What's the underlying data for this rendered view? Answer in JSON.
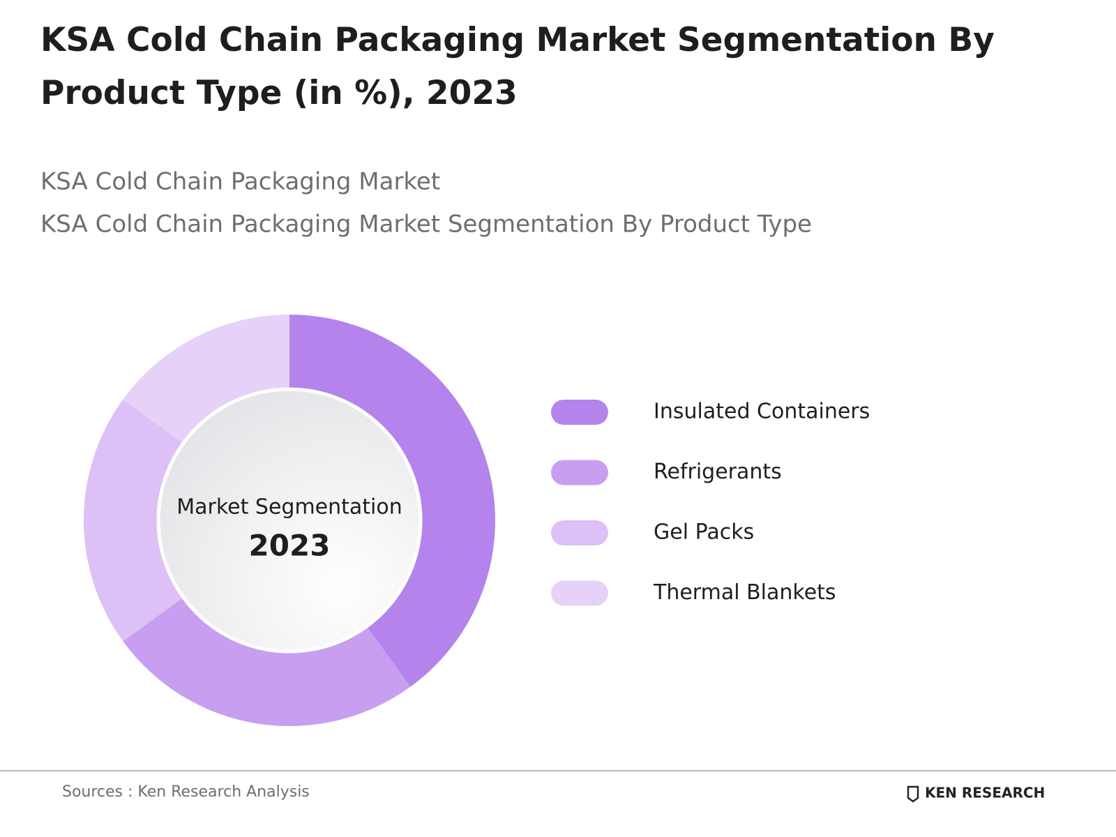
{
  "chart_data": {
    "type": "donut",
    "title": "KSA Cold Chain Packaging Market Segmentation By Product Type (in %), 2023",
    "subtitles": [
      "KSA Cold Chain Packaging Market",
      "KSA Cold Chain Packaging Market Segmentation By Product Type"
    ],
    "center_label": "Market Segmentation",
    "center_year": "2023",
    "categories": [
      "Insulated Containers",
      "Refrigerants",
      "Gel Packs",
      "Thermal Blankets"
    ],
    "values": [
      40,
      25,
      20,
      15
    ],
    "colors": [
      "#b484ec",
      "#c89ff0",
      "#dcc0f6",
      "#e6d2f8"
    ],
    "source": "Sources : Ken Research Analysis",
    "brand": "KEN RESEARCH"
  }
}
